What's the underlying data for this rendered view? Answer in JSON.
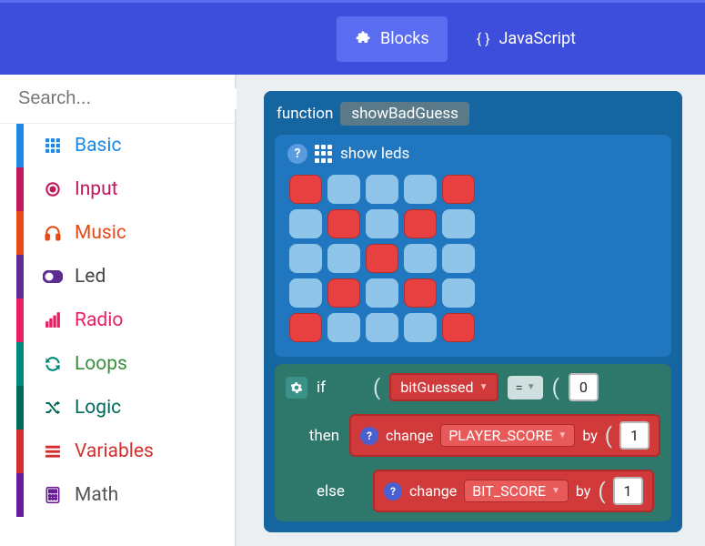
{
  "tabs": {
    "blocks": "Blocks",
    "javascript": "JavaScript"
  },
  "search": {
    "placeholder": "Search..."
  },
  "categories": [
    {
      "label": "Basic",
      "color": "#1e88e5",
      "text_color": "#1e88e5",
      "icon": "grid"
    },
    {
      "label": "Input",
      "color": "#c2185b",
      "text_color": "#c2185b",
      "icon": "target"
    },
    {
      "label": "Music",
      "color": "#e64a19",
      "text_color": "#e64a19",
      "icon": "headphones"
    },
    {
      "label": "Led",
      "color": "#5c2d91",
      "text_color": "#444",
      "icon": "toggle"
    },
    {
      "label": "Radio",
      "color": "#e91e63",
      "text_color": "#e91e63",
      "icon": "bars"
    },
    {
      "label": "Loops",
      "color": "#00897b",
      "text_color": "#388e3c",
      "icon": "refresh"
    },
    {
      "label": "Logic",
      "color": "#00695c",
      "text_color": "#00695c",
      "icon": "shuffle"
    },
    {
      "label": "Variables",
      "color": "#d32f2f",
      "text_color": "#d32f2f",
      "icon": "list"
    },
    {
      "label": "Math",
      "color": "#6a1b9a",
      "text_color": "#555",
      "icon": "calculator"
    }
  ],
  "function_block": {
    "keyword": "function",
    "name": "showBadGuess",
    "show_leds_label": "show leds",
    "led_on_color": "#e84040",
    "led_off_color": "#8ec5e8",
    "leds": [
      [
        1,
        0,
        0,
        0,
        1
      ],
      [
        0,
        1,
        0,
        1,
        0
      ],
      [
        0,
        0,
        1,
        0,
        0
      ],
      [
        0,
        1,
        0,
        1,
        0
      ],
      [
        1,
        0,
        0,
        0,
        1
      ]
    ]
  },
  "if_block": {
    "if": "if",
    "then": "then",
    "else": "else",
    "condition_var": "bitGuessed",
    "condition_op": "=",
    "condition_val": "0",
    "change_label": "change",
    "by_label": "by",
    "then_var": "PLAYER_SCORE",
    "then_val": "1",
    "else_var": "BIT_SCORE",
    "else_val": "1"
  },
  "colors": {
    "topbar": "#3d4edc",
    "tab_active": "#5a6df0",
    "workspace": "#eceff1",
    "func_block": "#1565a0",
    "showleds_block": "#2176c0",
    "if_block": "#2e776b",
    "var_block": "#d13a3a"
  }
}
